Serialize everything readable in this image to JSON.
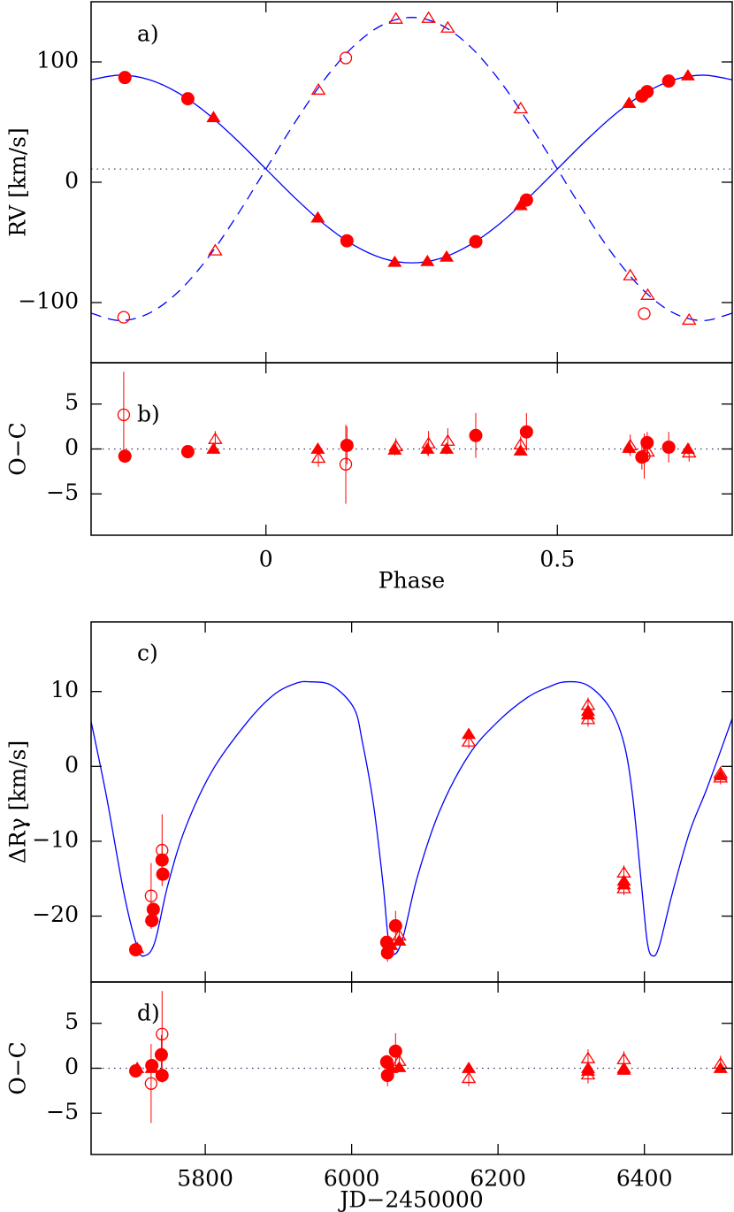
{
  "chart_data": [
    {
      "type": "scatter",
      "panel_label": "a)",
      "ylabel": "RV [km/s]",
      "xlim": [
        -0.3,
        0.8
      ],
      "ylim": [
        -150,
        150
      ],
      "xticks": [
        0,
        0.5
      ],
      "xtick_labels": false,
      "yticks": [
        {
          "value": -100,
          "label": "−100"
        },
        0,
        100
      ],
      "hline": 11,
      "series": [
        {
          "type": "line",
          "dash": "solid",
          "color": "#0000ff",
          "x": [
            -0.3,
            -0.25,
            -0.2,
            -0.15,
            -0.1,
            -0.05,
            0,
            0.05,
            0.1,
            0.15,
            0.2,
            0.25,
            0.3,
            0.35,
            0.4,
            0.45,
            0.5,
            0.55,
            0.6,
            0.65,
            0.7,
            0.75,
            0.8
          ],
          "values": [
            85.2,
            89,
            85.2,
            74.1,
            56.9,
            35.1,
            11,
            -13.1,
            -34.9,
            -52.1,
            -63.2,
            -67,
            -63.2,
            -52.1,
            -34.9,
            -13.1,
            11,
            35.1,
            56.9,
            74.1,
            85.2,
            89,
            85.2
          ]
        },
        {
          "type": "line",
          "dash": "dashed",
          "color": "#0000ff",
          "x": [
            -0.3,
            -0.25,
            -0.2,
            -0.15,
            -0.1,
            -0.05,
            0,
            0.05,
            0.1,
            0.15,
            0.2,
            0.25,
            0.3,
            0.35,
            0.4,
            0.45,
            0.5,
            0.55,
            0.6,
            0.65,
            0.7,
            0.75,
            0.8
          ],
          "values": [
            -108.8,
            -115,
            -108.8,
            -90.9,
            -63.1,
            -27.9,
            11,
            49.9,
            85.1,
            112.9,
            130.8,
            137,
            130.8,
            112.9,
            85.1,
            49.9,
            11,
            -27.9,
            -63.1,
            -90.9,
            -108.8,
            -115,
            -108.8
          ]
        },
        {
          "type": "scatter",
          "marker": "circle",
          "filled": true,
          "color": "#ff0000",
          "x": [
            -0.242,
            -0.134,
            0.139,
            0.36,
            0.447,
            0.645,
            0.654,
            0.691
          ],
          "values": [
            87,
            69.4,
            -48.7,
            -49.4,
            -14.8,
            71.6,
            75.3,
            84.1
          ]
        },
        {
          "type": "scatter",
          "marker": "triangle",
          "filled": true,
          "color": "#ff0000",
          "x": [
            -0.09,
            0.089,
            0.221,
            0.277,
            0.31,
            0.437,
            0.623,
            0.724
          ],
          "values": [
            53.9,
            -29.5,
            -66.4,
            -65.7,
            -62,
            -19.2,
            65.7,
            88.6
          ]
        },
        {
          "type": "scatter",
          "marker": "circle",
          "filled": false,
          "color": "#ff0000",
          "x": [
            -0.244,
            0.137,
            0.649
          ],
          "values": [
            -112.2,
            103.3,
            -109.2
          ]
        },
        {
          "type": "scatter",
          "marker": "triangle",
          "filled": false,
          "color": "#ff0000",
          "x": [
            -0.087,
            0.09,
            0.223,
            0.279,
            0.312,
            0.437,
            0.625,
            0.655,
            0.726
          ],
          "values": [
            -56.8,
            76.8,
            135.8,
            136.5,
            128.4,
            61.3,
            -77.5,
            -93.7,
            -114.4
          ]
        }
      ]
    },
    {
      "type": "scatter",
      "panel_label": "b)",
      "ylabel": "O−C",
      "xlabel": "Phase",
      "xlim": [
        -0.3,
        0.8
      ],
      "ylim": [
        -9.6,
        9.6
      ],
      "xticks": [
        0,
        0.5
      ],
      "xtick_labels": true,
      "yticks": [
        {
          "value": -5,
          "label": "−5"
        },
        0,
        5
      ],
      "hline": 0,
      "series": [
        {
          "type": "scatter",
          "marker": "circle",
          "filled": true,
          "color": "#ff0000",
          "x": [
            -0.242,
            -0.134,
            0.139,
            0.36,
            0.447,
            0.645,
            0.654,
            0.691
          ],
          "values": [
            -0.8,
            -0.3,
            0.4,
            1.5,
            1.9,
            -0.9,
            0.7,
            0.2
          ],
          "errors": [
            0.5,
            0.5,
            2.1,
            2.5,
            2.1,
            1.4,
            1.2,
            1.7
          ]
        },
        {
          "type": "scatter",
          "marker": "triangle",
          "filled": true,
          "color": "#ff0000",
          "x": [
            -0.09,
            0.089,
            0.221,
            0.277,
            0.31,
            0.437,
            0.623,
            0.724
          ],
          "values": [
            0,
            0,
            -0.1,
            0,
            0,
            -0.2,
            0.1,
            0
          ],
          "errors": [
            0.5,
            0.6,
            0.6,
            0.7,
            0.6,
            0.5,
            0.6,
            0.6
          ]
        },
        {
          "type": "scatter",
          "marker": "circle",
          "filled": false,
          "color": "#ff0000",
          "x": [
            -0.244,
            0.137,
            0.649
          ],
          "values": [
            3.8,
            -1.7,
            -0.8
          ],
          "errors": [
            4.8,
            4.4,
            2.5
          ]
        },
        {
          "type": "scatter",
          "marker": "triangle",
          "filled": false,
          "color": "#ff0000",
          "x": [
            -0.087,
            0.09,
            0.223,
            0.279,
            0.312,
            0.437,
            0.625,
            0.655,
            0.726
          ],
          "values": [
            1.1,
            -1.0,
            0.3,
            0.6,
            0.9,
            0.5,
            0.4,
            -0.3,
            -0.4
          ],
          "errors": [
            0.9,
            1.0,
            0.9,
            1.4,
            1.4,
            0.9,
            1.2,
            1.1,
            1.0
          ]
        }
      ]
    },
    {
      "type": "scatter",
      "panel_label": "c)",
      "ylabel": "ΔRγ [km/s]",
      "xlim": [
        5644,
        6520
      ],
      "ylim": [
        -28.8,
        19.3
      ],
      "xticks": [
        5800,
        6000,
        6200,
        6400
      ],
      "xtick_labels": false,
      "yticks": [
        {
          "value": -20,
          "label": "−20"
        },
        {
          "value": -10,
          "label": "−10"
        },
        0,
        10
      ],
      "series": [
        {
          "type": "line",
          "dash": "solid",
          "color": "#0000ff",
          "x": [
            5644,
            5665,
            5689,
            5707,
            5717,
            5731,
            5749,
            5773,
            5810,
            5858,
            5894,
            5924,
            5943,
            5973,
            6003,
            6015,
            6030,
            6043,
            6050,
            6058,
            6070,
            6090,
            6120,
            6160,
            6200,
            6240,
            6269,
            6293,
            6323,
            6353,
            6372,
            6384,
            6396,
            6404,
            6411,
            6420,
            6438,
            6462,
            6486,
            6520
          ],
          "values": [
            6.0,
            -4.0,
            -17.0,
            -24.1,
            -25.3,
            -23.5,
            -15.8,
            -8.2,
            -0.5,
            6.0,
            9.6,
            11.1,
            11.3,
            10.8,
            7.8,
            3.1,
            -5.2,
            -15.8,
            -22.9,
            -25.1,
            -22.9,
            -14.7,
            -6.0,
            1.5,
            6.0,
            9.2,
            10.6,
            11.3,
            10.8,
            7.8,
            3.1,
            -4.0,
            -15.8,
            -23.5,
            -25.3,
            -24.1,
            -17.0,
            -8.7,
            -2.8,
            6.4
          ]
        },
        {
          "type": "scatter",
          "marker": "circle",
          "filled": true,
          "color": "#ff0000",
          "x": [
            5705,
            5727,
            5729,
            5741,
            5742,
            6048,
            6049,
            6060
          ],
          "values": [
            -24.5,
            -20.6,
            -19.1,
            -12.5,
            -14.4,
            -23.5,
            -24.9,
            -21.3
          ],
          "errors": [
            0.4,
            0.6,
            0.6,
            2.2,
            0.8,
            0.8,
            1.2,
            2.0
          ]
        },
        {
          "type": "scatter",
          "marker": "triangle",
          "filled": true,
          "color": "#ff0000",
          "x": [
            5707,
            5727,
            6054,
            6065,
            6160,
            6323,
            6323,
            6372,
            6372,
            6504
          ],
          "values": [
            -24.3,
            -20.1,
            -23.9,
            -23.3,
            4.3,
            7.4,
            6.9,
            -15.3,
            -15.8,
            -1.2
          ],
          "errors": [
            0.4,
            0.5,
            0.6,
            0.6,
            0.5,
            0.5,
            0.5,
            0.5,
            0.5,
            0.5
          ]
        },
        {
          "type": "scatter",
          "marker": "circle",
          "filled": false,
          "color": "#ff0000",
          "x": [
            5726,
            5727,
            5741
          ],
          "values": [
            -17.3,
            -20.6,
            -11.2
          ],
          "errors": [
            4.4,
            0.8,
            4.8
          ]
        },
        {
          "type": "scatter",
          "marker": "triangle",
          "filled": false,
          "color": "#ff0000",
          "x": [
            6065,
            6160,
            6323,
            6323,
            6372,
            6372,
            6504,
            6504
          ],
          "values": [
            -22.6,
            3.3,
            8.2,
            6.3,
            -14.2,
            -16.3,
            -0.9,
            -1.5
          ],
          "errors": [
            0.8,
            0.9,
            1.0,
            1.0,
            1.0,
            0.9,
            0.9,
            0.9
          ]
        }
      ]
    },
    {
      "type": "scatter",
      "panel_label": "d)",
      "ylabel": "O−C",
      "xlabel": "JD−2450000",
      "xlim": [
        5644,
        6520
      ],
      "ylim": [
        -9.6,
        9.6
      ],
      "xticks": [
        5800,
        6000,
        6200,
        6400
      ],
      "xtick_labels": true,
      "yticks": [
        {
          "value": -5,
          "label": "−5"
        },
        0,
        5
      ],
      "hline": 0,
      "series": [
        {
          "type": "scatter",
          "marker": "circle",
          "filled": true,
          "color": "#ff0000",
          "x": [
            5705,
            5727,
            5740,
            5741,
            6048,
            6049,
            6060
          ],
          "values": [
            -0.3,
            0.3,
            1.5,
            -0.8,
            0.7,
            -0.8,
            1.9
          ],
          "errors": [
            0.4,
            0.6,
            2.2,
            0.8,
            0.8,
            1.2,
            2.0
          ]
        },
        {
          "type": "scatter",
          "marker": "triangle",
          "filled": true,
          "color": "#ff0000",
          "x": [
            5707,
            5727,
            6054,
            6065,
            6160,
            6323,
            6323,
            6372,
            6372,
            6504
          ],
          "values": [
            0,
            0,
            0,
            0.1,
            0,
            0,
            -0.3,
            0,
            -0.2,
            0
          ],
          "errors": [
            0.5,
            0.5,
            0.5,
            0.5,
            0.5,
            0.5,
            0.5,
            0.5,
            0.5,
            0.5
          ]
        },
        {
          "type": "scatter",
          "marker": "circle",
          "filled": false,
          "color": "#ff0000",
          "x": [
            5726,
            5741
          ],
          "values": [
            -1.7,
            3.8
          ],
          "errors": [
            4.4,
            4.8
          ]
        },
        {
          "type": "scatter",
          "marker": "triangle",
          "filled": false,
          "color": "#ff0000",
          "x": [
            6065,
            6160,
            6323,
            6323,
            6372,
            6504
          ],
          "values": [
            0.8,
            -1.1,
            1.1,
            -0.7,
            1.0,
            0.5
          ],
          "errors": [
            0.9,
            0.9,
            1.0,
            1.0,
            0.9,
            0.9
          ]
        }
      ]
    }
  ]
}
